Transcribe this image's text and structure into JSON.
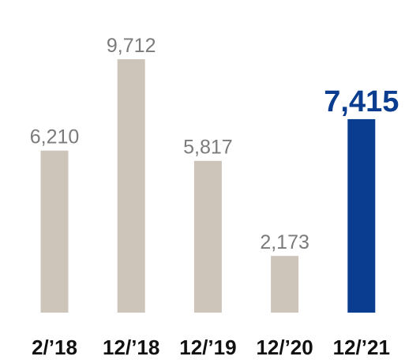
{
  "chart_data": {
    "type": "bar",
    "categories": [
      "2/’18",
      "12/’18",
      "12/’19",
      "12/’20",
      "12/’21"
    ],
    "values": [
      6210,
      9712,
      5817,
      2173,
      7415
    ],
    "value_labels": [
      "6,210",
      "9,712",
      "5,817",
      "2,173",
      "7,415"
    ],
    "colors": [
      "#cdc4ba",
      "#cdc4ba",
      "#cdc4ba",
      "#cdc4ba",
      "#0a3d8f"
    ],
    "highlight": 4
  }
}
